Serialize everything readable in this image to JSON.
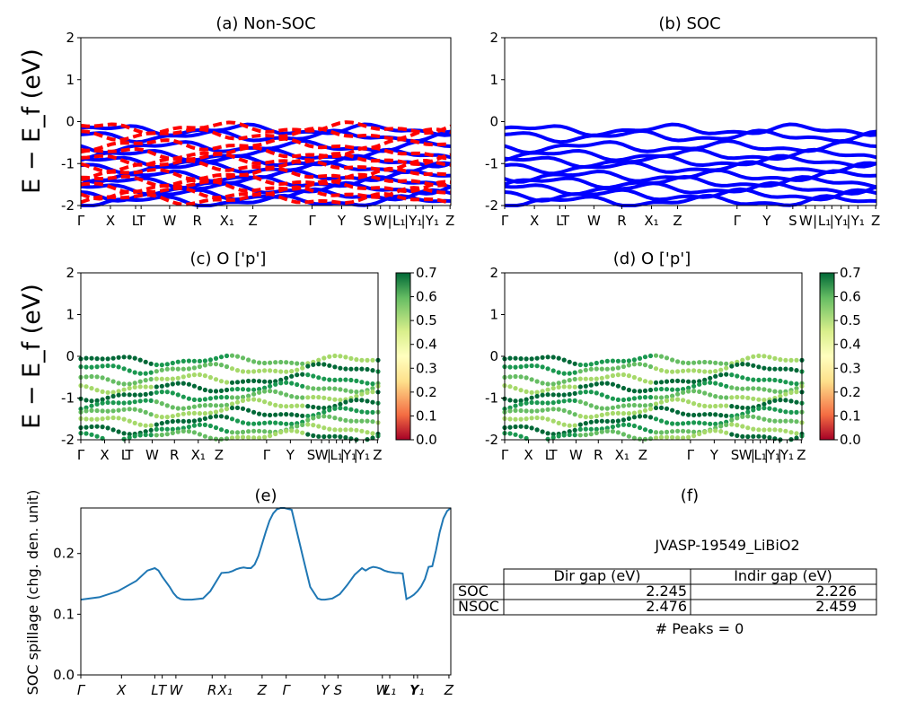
{
  "figure": {
    "ylabel_e": "E − E_f (eV)",
    "panel_titles": [
      "(a) Non-SOC",
      "(b) SOC",
      "(c)  O ['p']",
      "(d) O ['p']",
      "(e)",
      "(f)"
    ]
  },
  "colors": {
    "nonsoc_red": "#ff0000",
    "soc_blue": "#0000ff",
    "spillage_line": "#1f77b4"
  },
  "chart_data": [
    {
      "id": "a",
      "type": "line",
      "title": "(a) Non-SOC",
      "ylabel": "E − E_f (eV)",
      "ylim": [
        -2,
        2
      ],
      "yticks": [
        2,
        1,
        0,
        -1,
        -2
      ],
      "kpath_labels": [
        "Γ",
        "X",
        "L",
        "T",
        "W",
        "R",
        "X₁",
        "Z",
        "Γ",
        "Y",
        "S",
        "W",
        "|",
        "L₁",
        "|",
        "Y₁",
        "|",
        "Y₁",
        "Z"
      ],
      "series": [
        {
          "color": "#ff0000",
          "values": [
            -0.15,
            -0.3,
            -0.55,
            -0.75,
            -0.9,
            -1.05,
            -1.25,
            -1.4,
            -1.55,
            -1.7,
            -1.85
          ]
        },
        {
          "color": "#0000ff",
          "values": [
            -0.2,
            -0.35,
            -0.6,
            -0.8,
            -0.95,
            -1.1,
            -1.3,
            -1.45,
            -1.6,
            -1.75,
            -1.9
          ]
        }
      ]
    },
    {
      "id": "b",
      "type": "line",
      "title": "(b) SOC",
      "ylim": [
        -2,
        2
      ],
      "yticks": [
        2,
        1,
        0,
        -1,
        -2
      ],
      "kpath_labels": [
        "Γ",
        "X",
        "L",
        "T",
        "W",
        "R",
        "X₁",
        "Z",
        "Γ",
        "Y",
        "S",
        "W",
        "|",
        "L₁",
        "|",
        "Y₁",
        "|",
        "Y₁",
        "Z"
      ],
      "series": [
        {
          "color": "#0000ff",
          "values": [
            -0.2,
            -0.35,
            -0.6,
            -0.8,
            -0.95,
            -1.1,
            -1.3,
            -1.45,
            -1.6,
            -1.75,
            -1.9
          ]
        }
      ]
    },
    {
      "id": "c",
      "type": "scatter",
      "title": "(c)  O ['p']",
      "ylabel": "E − E_f (eV)",
      "ylim": [
        -2,
        2
      ],
      "yticks": [
        2,
        1,
        0,
        -1,
        -2
      ],
      "colorbar": {
        "min": 0.0,
        "max": 0.7,
        "ticks": [
          "0.7",
          "0.6",
          "0.5",
          "0.4",
          "0.3",
          "0.2",
          "0.1",
          "0.0"
        ]
      },
      "kpath_labels": [
        "Γ",
        "X",
        "L",
        "T",
        "W",
        "R",
        "X₁",
        "Z",
        "Γ",
        "Y",
        "S",
        "W",
        "|",
        "L₁",
        "|",
        "Y₁",
        "|",
        "Y₁",
        "Z"
      ],
      "band_values": [
        -0.1,
        -0.3,
        -0.55,
        -0.75,
        -0.95,
        -1.15,
        -1.35,
        -1.55,
        -1.75,
        -1.9
      ]
    },
    {
      "id": "d",
      "type": "scatter",
      "title": "(d) O ['p']",
      "ylim": [
        -2,
        2
      ],
      "yticks": [
        2,
        1,
        0,
        -1,
        -2
      ],
      "colorbar": {
        "min": 0.0,
        "max": 0.7,
        "ticks": [
          "0.7",
          "0.6",
          "0.5",
          "0.4",
          "0.3",
          "0.2",
          "0.1",
          "0.0"
        ]
      },
      "kpath_labels": [
        "Γ",
        "X",
        "L",
        "T",
        "W",
        "R",
        "X₁",
        "Z",
        "Γ",
        "Y",
        "S",
        "W",
        "|",
        "L₁",
        "|",
        "Y₁",
        "|",
        "Y₁",
        "Z"
      ],
      "band_values": [
        -0.1,
        -0.3,
        -0.55,
        -0.75,
        -0.95,
        -1.15,
        -1.35,
        -1.55,
        -1.75,
        -1.9
      ]
    },
    {
      "id": "e",
      "type": "line",
      "title": "(e)",
      "ylabel": "SOC spillage (chg. den. unit)",
      "ylim": [
        0.0,
        0.275
      ],
      "yticks": [
        "0.2",
        "0.1",
        "0.0"
      ],
      "kpath_labels": [
        "Γ",
        "X",
        "L",
        "T",
        "W",
        "R",
        "X₁",
        "Z",
        "Γ",
        "Y",
        "S",
        "W",
        "L₁",
        "Y",
        "Y₁",
        "Z"
      ],
      "x": [
        0,
        5,
        10,
        15,
        18,
        20,
        21,
        22,
        24,
        25,
        26,
        27,
        28,
        30,
        33,
        35,
        38,
        40,
        41,
        42,
        43,
        44,
        45,
        46,
        47,
        48,
        49,
        50,
        51,
        52,
        53,
        54,
        55,
        57,
        60,
        62,
        64,
        65,
        66,
        67,
        68,
        70,
        72,
        74,
        76,
        77,
        78,
        79,
        80,
        81,
        82,
        83,
        84,
        85,
        86,
        87,
        88,
        89,
        90,
        91,
        92,
        93,
        94,
        95,
        96,
        97,
        98,
        99,
        100
      ],
      "values": [
        0.124,
        0.128,
        0.138,
        0.155,
        0.172,
        0.176,
        0.172,
        0.162,
        0.145,
        0.135,
        0.128,
        0.125,
        0.124,
        0.124,
        0.126,
        0.138,
        0.168,
        0.169,
        0.171,
        0.174,
        0.176,
        0.177,
        0.176,
        0.176,
        0.182,
        0.196,
        0.216,
        0.236,
        0.254,
        0.266,
        0.273,
        0.275,
        0.275,
        0.272,
        0.195,
        0.145,
        0.126,
        0.124,
        0.124,
        0.125,
        0.126,
        0.133,
        0.148,
        0.165,
        0.176,
        0.172,
        0.176,
        0.178,
        0.177,
        0.175,
        0.172,
        0.17,
        0.169,
        0.168,
        0.168,
        0.167,
        0.125,
        0.128,
        0.132,
        0.138,
        0.146,
        0.158,
        0.178,
        0.179,
        0.205,
        0.235,
        0.258,
        0.27,
        0.275
      ]
    }
  ],
  "table": {
    "title": "JVASP-19549_LiBiO2",
    "headers": [
      "",
      "Dir gap (eV)",
      "Indir gap (eV)"
    ],
    "rows": [
      [
        "SOC",
        "2.245",
        "2.226"
      ],
      [
        "NSOC",
        "2.476",
        "2.459"
      ]
    ],
    "footer": "# Peaks = 0"
  }
}
